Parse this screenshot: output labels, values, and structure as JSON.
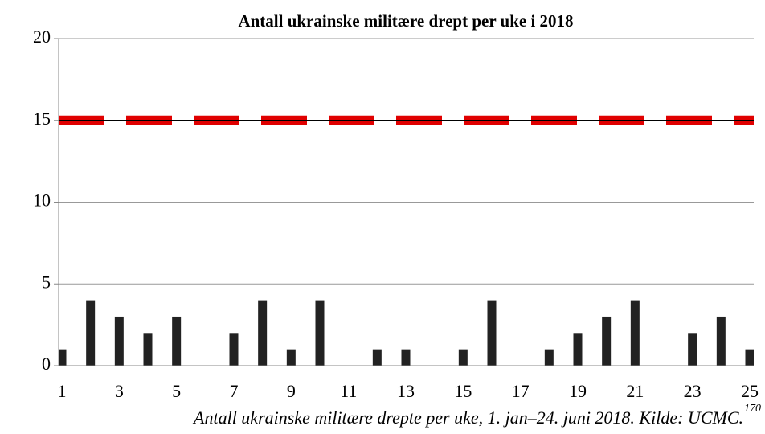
{
  "chart_data": {
    "type": "bar",
    "title": "Antall ukrainske militære drept per uke i 2018",
    "caption": "Antall ukrainske militære drepte per uke, 1. jan–24. juni 2018. Kilde: UCMC.",
    "footnote": "170",
    "categories": [
      "1",
      null,
      "3",
      null,
      "5",
      null,
      "7",
      null,
      "9",
      null,
      "11",
      null,
      "13",
      null,
      "15",
      null,
      "17",
      null,
      "19",
      null,
      "21",
      null,
      "23",
      null,
      "25"
    ],
    "values": [
      1,
      4,
      3,
      2,
      3,
      0,
      2,
      4,
      1,
      4,
      0,
      1,
      1,
      0,
      1,
      4,
      0,
      1,
      2,
      3,
      4,
      0,
      2,
      3,
      1
    ],
    "color": "#222222",
    "reference_line": 15,
    "reference_color": "#e00000",
    "ylim": [
      0,
      20
    ],
    "yticks": [
      0,
      5,
      10,
      15,
      20
    ],
    "grid": true
  }
}
